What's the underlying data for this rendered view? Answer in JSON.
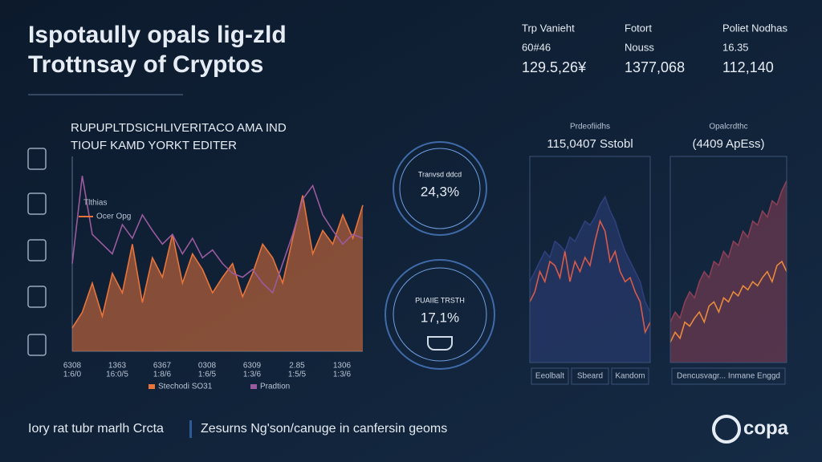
{
  "header": {
    "title_lines": [
      "Ispotaully opals lig-zld",
      "Trottnsay of Cryptos"
    ]
  },
  "stats": [
    {
      "label": "Trp Vanieht",
      "sub": "60#46",
      "value": "129.5,26¥"
    },
    {
      "label": "Fotort",
      "sub": "Nouss",
      "value": "1377,068"
    },
    {
      "label": "Poliet Nodhas",
      "sub": "16.35",
      "value": "112,140"
    }
  ],
  "main_panel": {
    "subtitle_lines": [
      "RUPUPLTDSICHLIVERITACO AMA IND",
      "TIOUF KAMD YORKT EDITER"
    ],
    "inline_labels": [
      "Tlthias",
      "Ocer Opg"
    ],
    "x_labels": [
      [
        "6308",
        "1:6/0"
      ],
      [
        "1363",
        "16:0/5"
      ],
      [
        "6367",
        "1:8/6"
      ],
      [
        "0308",
        "1:6/5"
      ],
      [
        "6309",
        "1:3/6"
      ],
      [
        "2.85",
        "1:5/5"
      ],
      [
        "1306",
        "1:3/6"
      ]
    ],
    "ylim": [
      0,
      100
    ],
    "series": [
      {
        "name": "Stechodi SO31",
        "color": "#e8743b",
        "area": true,
        "values": [
          12,
          20,
          35,
          18,
          40,
          30,
          55,
          25,
          48,
          38,
          60,
          35,
          50,
          42,
          30,
          38,
          45,
          28,
          40,
          55,
          48,
          35,
          58,
          80,
          50,
          62,
          55,
          70,
          58,
          75
        ]
      },
      {
        "name": "Pradtion",
        "color": "#9a5a9e",
        "area": false,
        "values": [
          45,
          90,
          60,
          55,
          50,
          65,
          58,
          70,
          62,
          55,
          60,
          50,
          58,
          48,
          52,
          45,
          40,
          38,
          42,
          35,
          30,
          45,
          60,
          78,
          85,
          70,
          62,
          55,
          60,
          58
        ]
      }
    ]
  },
  "gauges": [
    {
      "label": "Tranvsd ddcd",
      "value": "24,3%"
    },
    {
      "label": "PUAIIE TRSTH",
      "value": "17,1%"
    }
  ],
  "side_panels": [
    {
      "caption": "Prdeofiidhs",
      "headline": "115,0407 Sstobl",
      "footer_labels": [
        "Eeolbalt",
        "Sbeard",
        "Kandom"
      ],
      "ylim": [
        0,
        100
      ],
      "series": [
        {
          "color": "#2e3f7a",
          "area": true,
          "values": [
            40,
            45,
            50,
            55,
            52,
            60,
            58,
            55,
            62,
            60,
            65,
            70,
            68,
            72,
            78,
            82,
            75,
            70,
            62,
            55,
            50,
            45,
            40,
            30,
            25
          ]
        },
        {
          "color": "#d85a4a",
          "area": false,
          "values": [
            30,
            35,
            45,
            40,
            50,
            48,
            42,
            55,
            40,
            50,
            45,
            52,
            48,
            60,
            70,
            65,
            50,
            55,
            45,
            40,
            42,
            35,
            30,
            15,
            20
          ]
        }
      ]
    },
    {
      "caption": "Opalcrdthc",
      "headline": "(4409 ApEss)",
      "footer_labels": [
        "Dencusvagr... Inmane Enggd"
      ],
      "ylim": [
        0,
        100
      ],
      "series": [
        {
          "color": "#8a3f55",
          "area": true,
          "values": [
            20,
            25,
            22,
            30,
            35,
            32,
            40,
            45,
            42,
            50,
            48,
            55,
            52,
            60,
            58,
            65,
            62,
            70,
            68,
            75,
            72,
            80,
            78,
            85,
            90
          ]
        },
        {
          "color": "#e88a3b",
          "area": false,
          "values": [
            10,
            15,
            12,
            20,
            18,
            22,
            25,
            20,
            28,
            30,
            25,
            32,
            30,
            35,
            33,
            38,
            36,
            40,
            38,
            42,
            45,
            40,
            48,
            50,
            45
          ]
        }
      ]
    }
  ],
  "footer": {
    "left": "Iory rat tubr marlh Crcta",
    "right": "Zesurns Ng'son/canuge in canfersin geoms",
    "logo": "copa"
  }
}
